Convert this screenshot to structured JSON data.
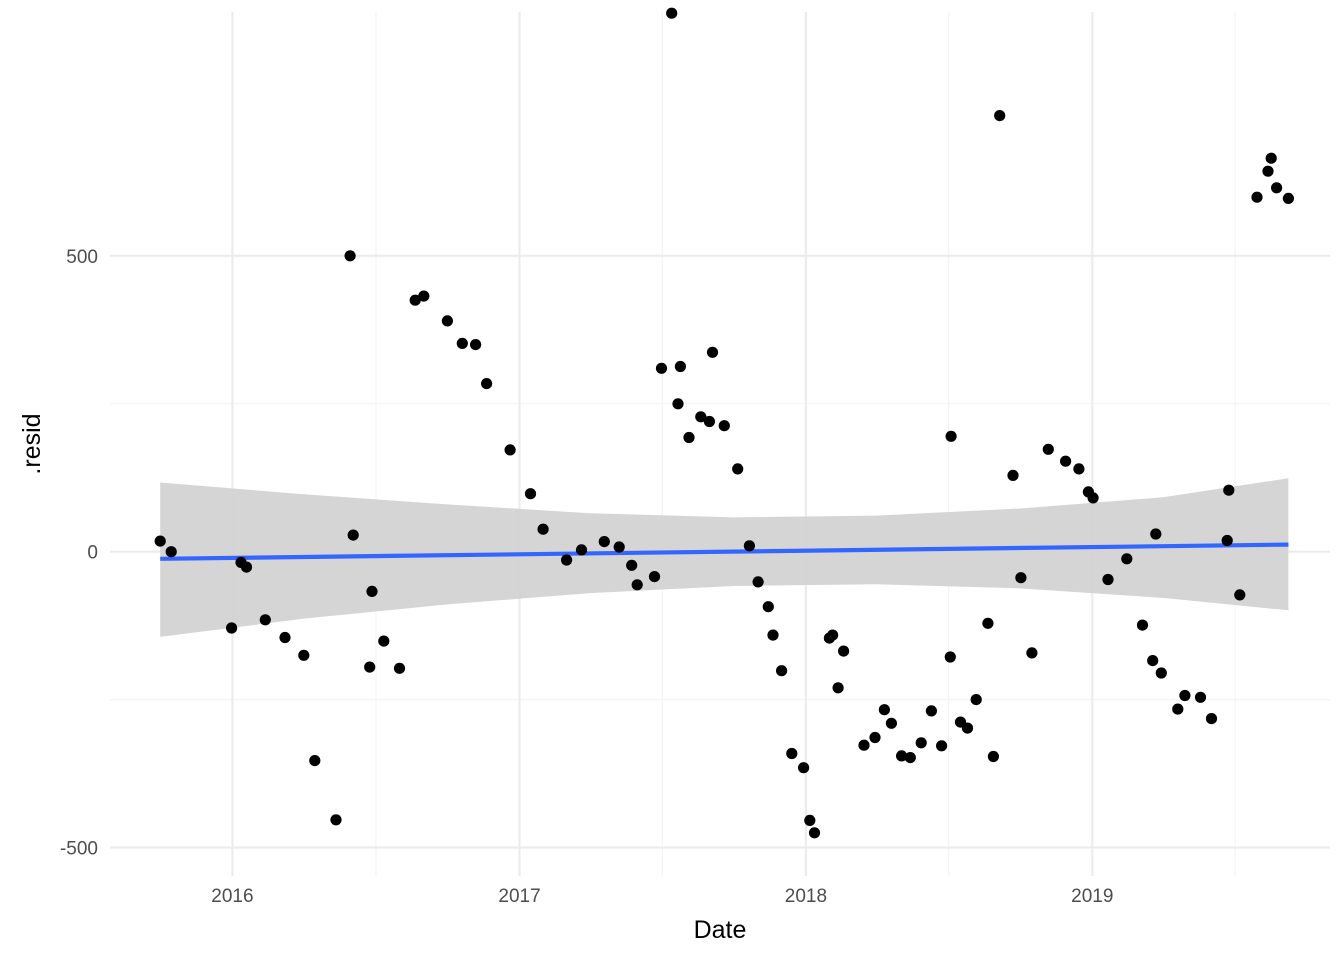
{
  "chart_data": {
    "type": "scatter",
    "xlabel": "Date",
    "ylabel": ".resid",
    "x_tick_labels": [
      "2016",
      "2017",
      "2018",
      "2019"
    ],
    "y_tick_labels": [
      "-500",
      "0",
      "500"
    ],
    "x_ticks": [
      "2016-01-01",
      "2017-01-01",
      "2018-01-01",
      "2019-01-01"
    ],
    "y_ticks": [
      -500,
      0,
      500
    ],
    "xlim": [
      "2015-07-29",
      "2019-10-31"
    ],
    "ylim": [
      -548,
      912
    ],
    "grid": true,
    "colors": {
      "points": "#000000",
      "trend": "#3366ff",
      "ribbon": "#d3d3d3",
      "grid": "#ebebeb"
    },
    "points": [
      {
        "date": "2015-10-01",
        "resid": 18
      },
      {
        "date": "2015-10-15",
        "resid": 0
      },
      {
        "date": "2015-12-31",
        "resid": -129
      },
      {
        "date": "2016-01-12",
        "resid": -18
      },
      {
        "date": "2016-01-19",
        "resid": -26
      },
      {
        "date": "2016-02-12",
        "resid": -115
      },
      {
        "date": "2016-03-08",
        "resid": -145
      },
      {
        "date": "2016-04-01",
        "resid": -175
      },
      {
        "date": "2016-04-15",
        "resid": -353
      },
      {
        "date": "2016-05-12",
        "resid": -453
      },
      {
        "date": "2016-05-30",
        "resid": 500
      },
      {
        "date": "2016-06-03",
        "resid": 28
      },
      {
        "date": "2016-06-24",
        "resid": -195
      },
      {
        "date": "2016-06-27",
        "resid": -67
      },
      {
        "date": "2016-07-12",
        "resid": -151
      },
      {
        "date": "2016-08-01",
        "resid": -197
      },
      {
        "date": "2016-08-21",
        "resid": 425
      },
      {
        "date": "2016-09-01",
        "resid": 432
      },
      {
        "date": "2016-10-01",
        "resid": 390
      },
      {
        "date": "2016-10-20",
        "resid": 352
      },
      {
        "date": "2016-11-06",
        "resid": 350
      },
      {
        "date": "2016-11-20",
        "resid": 284
      },
      {
        "date": "2016-12-20",
        "resid": 172
      },
      {
        "date": "2017-01-15",
        "resid": 98
      },
      {
        "date": "2017-01-31",
        "resid": 38
      },
      {
        "date": "2017-03-02",
        "resid": -14
      },
      {
        "date": "2017-03-21",
        "resid": 3
      },
      {
        "date": "2017-04-19",
        "resid": 17
      },
      {
        "date": "2017-05-08",
        "resid": 8
      },
      {
        "date": "2017-05-24",
        "resid": -23
      },
      {
        "date": "2017-05-31",
        "resid": -56
      },
      {
        "date": "2017-06-22",
        "resid": -42
      },
      {
        "date": "2017-07-01",
        "resid": 310
      },
      {
        "date": "2017-07-14",
        "resid": 910
      },
      {
        "date": "2017-07-22",
        "resid": 250
      },
      {
        "date": "2017-07-25",
        "resid": 313
      },
      {
        "date": "2017-08-05",
        "resid": 193
      },
      {
        "date": "2017-08-20",
        "resid": 228
      },
      {
        "date": "2017-08-31",
        "resid": 220
      },
      {
        "date": "2017-09-04",
        "resid": 337
      },
      {
        "date": "2017-09-19",
        "resid": 213
      },
      {
        "date": "2017-10-06",
        "resid": 140
      },
      {
        "date": "2017-10-21",
        "resid": 10
      },
      {
        "date": "2017-11-01",
        "resid": -51
      },
      {
        "date": "2017-11-14",
        "resid": -93
      },
      {
        "date": "2017-11-20",
        "resid": -141
      },
      {
        "date": "2017-12-01",
        "resid": -201
      },
      {
        "date": "2017-12-14",
        "resid": -341
      },
      {
        "date": "2017-12-29",
        "resid": -365
      },
      {
        "date": "2018-01-06",
        "resid": -454
      },
      {
        "date": "2018-01-12",
        "resid": -475
      },
      {
        "date": "2018-01-31",
        "resid": -146
      },
      {
        "date": "2018-02-04",
        "resid": -141
      },
      {
        "date": "2018-02-11",
        "resid": -230
      },
      {
        "date": "2018-02-18",
        "resid": -168
      },
      {
        "date": "2018-03-16",
        "resid": -327
      },
      {
        "date": "2018-03-30",
        "resid": -314
      },
      {
        "date": "2018-04-11",
        "resid": -267
      },
      {
        "date": "2018-04-20",
        "resid": -290
      },
      {
        "date": "2018-05-03",
        "resid": -345
      },
      {
        "date": "2018-05-14",
        "resid": -348
      },
      {
        "date": "2018-05-28",
        "resid": -323
      },
      {
        "date": "2018-06-10",
        "resid": -269
      },
      {
        "date": "2018-06-23",
        "resid": -328
      },
      {
        "date": "2018-07-04",
        "resid": -178
      },
      {
        "date": "2018-07-05",
        "resid": 195
      },
      {
        "date": "2018-07-17",
        "resid": -288
      },
      {
        "date": "2018-07-26",
        "resid": -298
      },
      {
        "date": "2018-08-06",
        "resid": -250
      },
      {
        "date": "2018-08-21",
        "resid": -121
      },
      {
        "date": "2018-08-28",
        "resid": -346
      },
      {
        "date": "2018-09-05",
        "resid": 737
      },
      {
        "date": "2018-09-22",
        "resid": 129
      },
      {
        "date": "2018-10-02",
        "resid": -44
      },
      {
        "date": "2018-10-16",
        "resid": -171
      },
      {
        "date": "2018-11-06",
        "resid": 173
      },
      {
        "date": "2018-11-28",
        "resid": 153
      },
      {
        "date": "2018-12-15",
        "resid": 140
      },
      {
        "date": "2018-12-27",
        "resid": 101
      },
      {
        "date": "2019-01-02",
        "resid": 91
      },
      {
        "date": "2019-01-21",
        "resid": -47
      },
      {
        "date": "2019-02-14",
        "resid": -12
      },
      {
        "date": "2019-03-06",
        "resid": -124
      },
      {
        "date": "2019-03-19",
        "resid": -184
      },
      {
        "date": "2019-03-23",
        "resid": 30
      },
      {
        "date": "2019-03-30",
        "resid": -205
      },
      {
        "date": "2019-04-20",
        "resid": -266
      },
      {
        "date": "2019-04-29",
        "resid": -243
      },
      {
        "date": "2019-05-19",
        "resid": -246
      },
      {
        "date": "2019-06-02",
        "resid": -282
      },
      {
        "date": "2019-06-22",
        "resid": 19
      },
      {
        "date": "2019-06-24",
        "resid": 104
      },
      {
        "date": "2019-07-08",
        "resid": -73
      },
      {
        "date": "2019-07-30",
        "resid": 599
      },
      {
        "date": "2019-08-13",
        "resid": 643
      },
      {
        "date": "2019-08-17",
        "resid": 665
      },
      {
        "date": "2019-08-24",
        "resid": 615
      },
      {
        "date": "2019-09-08",
        "resid": 597
      }
    ],
    "trend": {
      "method": "linear",
      "x": [
        "2015-10-01",
        "2019-09-08"
      ],
      "y": [
        -12,
        12
      ]
    },
    "confidence_band": {
      "x": [
        "2015-10-01",
        "2016-04-01",
        "2016-10-01",
        "2017-04-01",
        "2017-10-01",
        "2018-04-01",
        "2018-10-01",
        "2019-04-01",
        "2019-09-08"
      ],
      "upper": [
        117,
        97,
        80,
        65,
        58,
        61,
        73,
        92,
        124
      ],
      "lower": [
        -144,
        -113,
        -89,
        -70,
        -58,
        -55,
        -62,
        -78,
        -99
      ]
    }
  }
}
